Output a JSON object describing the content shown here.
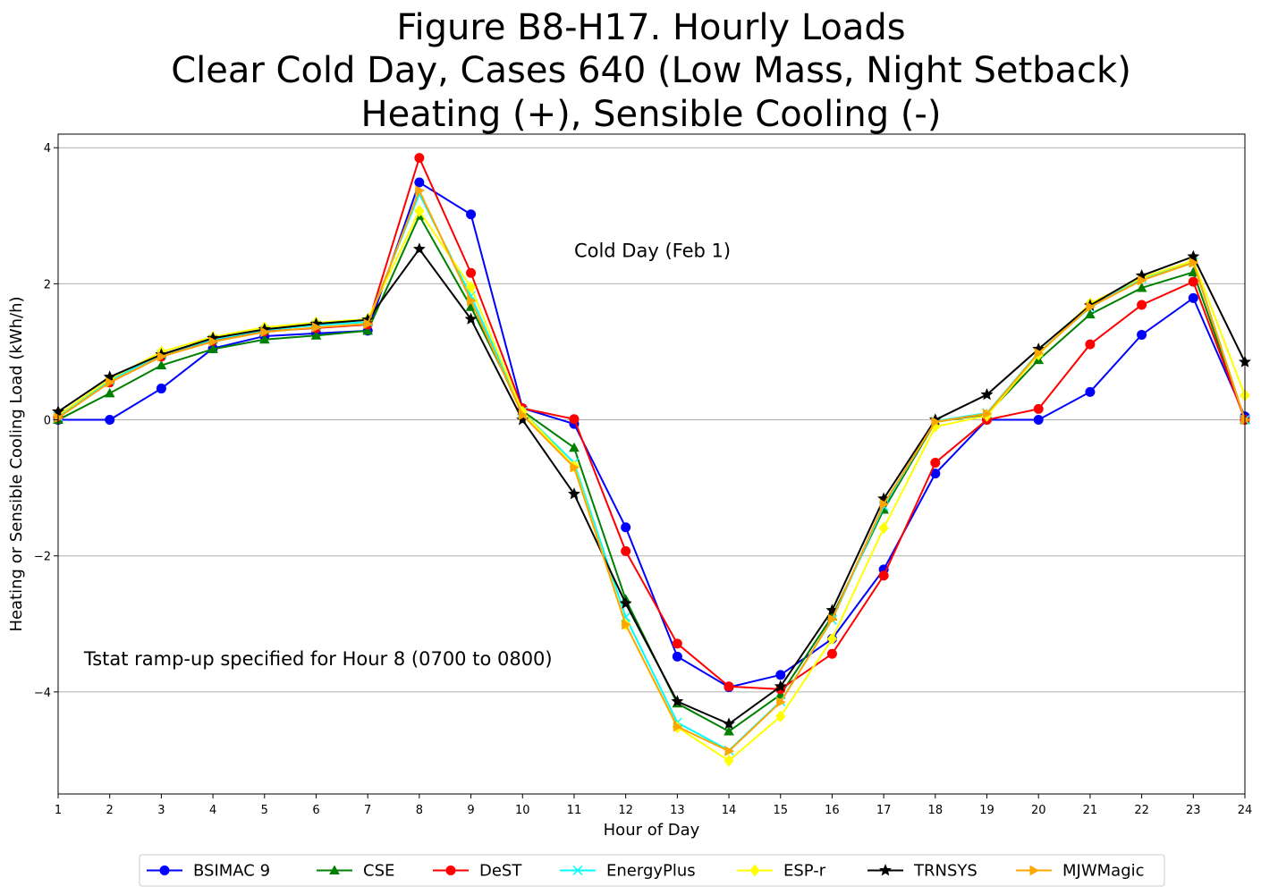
{
  "chart_data": {
    "type": "line",
    "title_lines": [
      "Figure B8-H17. Hourly Loads",
      "Clear Cold Day, Cases 640 (Low Mass, Night Setback)",
      "Heating (+), Sensible Cooling (-)"
    ],
    "xlabel": "Hour of Day",
    "ylabel": "Heating or Sensible Cooling Load (kWh/h)",
    "xlim": [
      1,
      24
    ],
    "ylim": [
      -5.5,
      4.2
    ],
    "x_ticks": [
      1,
      2,
      3,
      4,
      5,
      6,
      7,
      8,
      9,
      10,
      11,
      12,
      13,
      14,
      15,
      16,
      17,
      18,
      19,
      20,
      21,
      22,
      23,
      24
    ],
    "y_ticks": [
      4,
      2,
      0,
      -2,
      -4
    ],
    "y_tick_labels": [
      "4",
      "2",
      "0",
      "−2",
      "−4"
    ],
    "grid": "horizontal",
    "legend_placement": "bottom-center",
    "annotations": [
      {
        "text": "Cold Day (Feb 1)",
        "x": 11,
        "y": 2.5
      },
      {
        "text": "Tstat ramp-up specified for Hour 8 (0700 to 0800)",
        "x": 1.5,
        "y": -3.5
      }
    ],
    "x": [
      1,
      2,
      3,
      4,
      5,
      6,
      7,
      8,
      9,
      10,
      11,
      12,
      13,
      14,
      15,
      16,
      17,
      18,
      19,
      20,
      21,
      22,
      23,
      24
    ],
    "series": [
      {
        "name": "BSIMAC 9",
        "color": "#0000ff",
        "marker": "circle",
        "values": [
          0,
          0,
          0.46,
          1.05,
          1.23,
          1.27,
          1.31,
          3.49,
          3.02,
          0.17,
          -0.06,
          -1.58,
          -3.48,
          -3.93,
          -3.75,
          -3.22,
          -2.2,
          -0.79,
          0,
          0,
          0.41,
          1.25,
          1.79,
          0.05
        ]
      },
      {
        "name": "CSE",
        "color": "#008000",
        "marker": "triangle",
        "values": [
          0,
          0.39,
          0.8,
          1.04,
          1.18,
          1.24,
          1.31,
          3.0,
          1.66,
          0.13,
          -0.41,
          -2.64,
          -4.17,
          -4.58,
          -4.04,
          -2.89,
          -1.32,
          -0.03,
          0.08,
          0.88,
          1.55,
          1.94,
          2.17,
          0
        ]
      },
      {
        "name": "DeST",
        "color": "#ff0000",
        "marker": "circle",
        "values": [
          0.05,
          0.55,
          0.93,
          1.16,
          1.3,
          1.35,
          1.4,
          3.85,
          2.16,
          0.17,
          0.01,
          -1.93,
          -3.29,
          -3.92,
          -3.96,
          -3.44,
          -2.29,
          -0.63,
          0.0,
          0.16,
          1.11,
          1.69,
          2.03,
          0
        ]
      },
      {
        "name": "EnergyPlus",
        "color": "#00ffff",
        "marker": "x",
        "values": [
          0.05,
          0.58,
          0.96,
          1.18,
          1.32,
          1.39,
          1.44,
          3.32,
          1.82,
          0.12,
          -0.63,
          -2.9,
          -4.45,
          -4.86,
          -4.14,
          -2.94,
          -1.27,
          -0.02,
          0.1,
          0.99,
          1.65,
          2.08,
          2.32,
          0
        ]
      },
      {
        "name": "ESP-r",
        "color": "#ffff00",
        "marker": "diamond",
        "values": [
          0.07,
          0.6,
          1.0,
          1.22,
          1.36,
          1.43,
          1.48,
          3.07,
          1.95,
          0.12,
          -0.68,
          -3.01,
          -4.52,
          -5.01,
          -4.36,
          -3.22,
          -1.59,
          -0.1,
          0.06,
          0.96,
          1.71,
          2.09,
          2.34,
          0.36
        ]
      },
      {
        "name": "TRNSYS",
        "color": "#000000",
        "marker": "star",
        "values": [
          0.12,
          0.63,
          0.96,
          1.2,
          1.33,
          1.41,
          1.47,
          2.51,
          1.48,
          0,
          -1.09,
          -2.7,
          -4.14,
          -4.47,
          -3.92,
          -2.8,
          -1.16,
          0,
          0.37,
          1.04,
          1.68,
          2.12,
          2.4,
          0.85
        ]
      },
      {
        "name": "MJWMagic",
        "color": "#ffa500",
        "marker": "triangle-right",
        "values": [
          0.03,
          0.55,
          0.93,
          1.15,
          1.29,
          1.36,
          1.41,
          3.37,
          1.75,
          0.07,
          -0.7,
          -3.01,
          -4.51,
          -4.87,
          -4.15,
          -2.93,
          -1.24,
          -0.03,
          0.09,
          0.98,
          1.66,
          2.05,
          2.31,
          0
        ]
      }
    ]
  }
}
